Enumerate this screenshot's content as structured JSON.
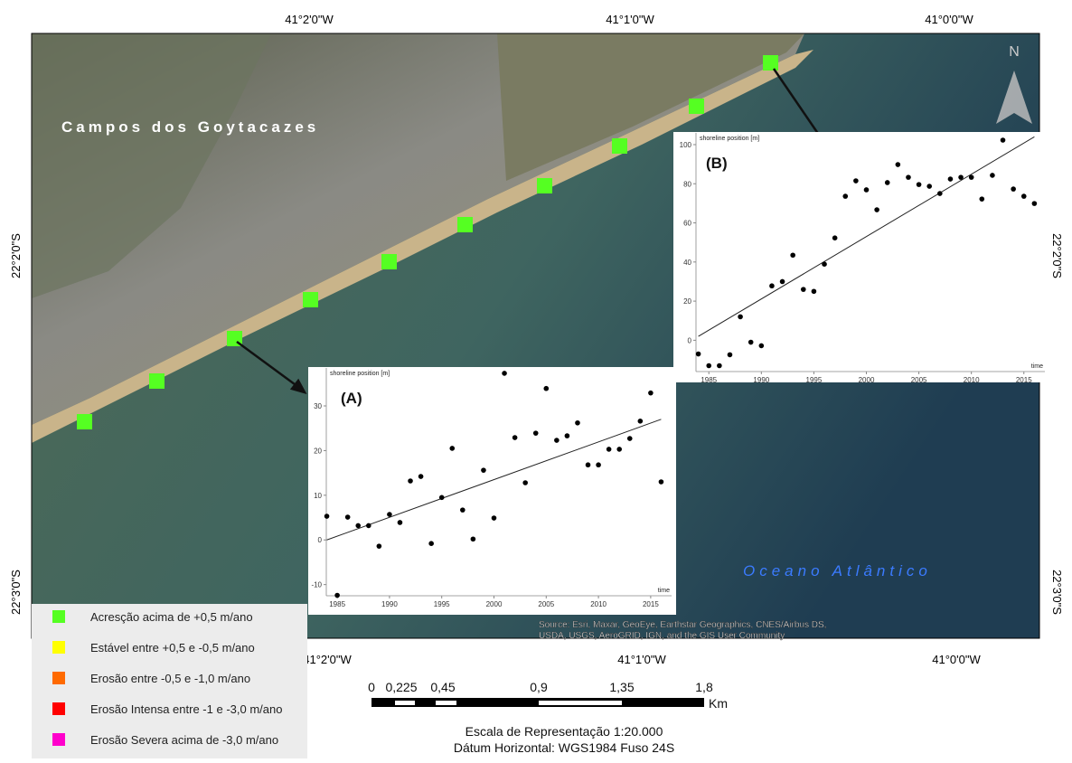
{
  "map": {
    "coords_top": [
      "41°2'0\"W",
      "41°1'0\"W",
      "41°0'0\"W"
    ],
    "coords_bottom": [
      "41°2'0\"W",
      "41°1'0\"W",
      "41°0'0\"W"
    ],
    "coords_left": [
      "22°2'0\"S",
      "22°3'0\"S"
    ],
    "coords_right": [
      "22°2'0\"S",
      "22°3'0\"S"
    ],
    "place_label": "Campos dos Goytacazes",
    "ocean_label": "Oceano Atlântico",
    "north": "N",
    "source": [
      "Source: Esri, Maxar, GeoEye, Earthstar Geographics, CNES/Airbus DS,",
      "USDA, USGS, AeroGRID, IGN, and the GIS User Community"
    ],
    "legend": [
      {
        "color": "#55ff22",
        "label": "Acresção  acima de +0,5 m/ano"
      },
      {
        "color": "#ffff00",
        "label": "Estável entre +0,5 e -0,5 m/ano"
      },
      {
        "color": "#ff6a00",
        "label": "Erosão entre -0,5 e -1,0 m/ano"
      },
      {
        "color": "#ff0000",
        "label": "Erosão Intensa entre -1 e  -3,0 m/ano"
      },
      {
        "color": "#ff00cc",
        "label": "Erosão Severa acima de -3,0 m/ano"
      }
    ],
    "scale": {
      "labels": [
        "0",
        "0,225",
        "0,45",
        "0,9",
        "1,35",
        "1,8"
      ],
      "unit": "Km"
    },
    "caption": [
      "Escala de Representação 1:20.000",
      "Dátum Horizontal: WGS1984 Fuso 24S"
    ]
  },
  "chart_data": [
    {
      "type": "scatter",
      "label": "(A)",
      "y_label": "shoreline position [m]",
      "x_label": "time",
      "x": [
        1984,
        1985,
        1986,
        1987,
        1988,
        1989,
        1990,
        1991,
        1992,
        1993,
        1994,
        1995,
        1996,
        1997,
        1998,
        1999,
        2000,
        2001,
        2002,
        2003,
        2004,
        2005,
        2006,
        2007,
        2008,
        2009,
        2010,
        2011,
        2012,
        2013,
        2014,
        2015,
        2016
      ],
      "y": [
        5.3,
        -12.4,
        5.1,
        3.2,
        3.2,
        -1.4,
        5.7,
        3.9,
        13.2,
        14.2,
        -0.8,
        9.5,
        20.5,
        6.7,
        0.2,
        15.6,
        4.9,
        37.3,
        22.9,
        12.8,
        23.9,
        33.9,
        22.3,
        23.3,
        26.2,
        16.8,
        16.8,
        20.3,
        20.3,
        22.7,
        26.6,
        32.9,
        13.0
      ],
      "trend": {
        "x": [
          1984,
          2016
        ],
        "y": [
          0,
          27
        ]
      },
      "xlim": [
        1983,
        2017
      ],
      "ylim": [
        -12.5,
        38.5
      ],
      "xticks": [
        1985,
        1990,
        1995,
        2000,
        2005,
        2010,
        2015
      ],
      "yticks": [
        -10,
        0,
        10,
        20,
        30
      ]
    },
    {
      "type": "scatter",
      "label": "(B)",
      "y_label": "shoreline position [m]",
      "x_label": "time",
      "x": [
        1984,
        1985,
        1986,
        1987,
        1988,
        1989,
        1990,
        1991,
        1992,
        1993,
        1994,
        1995,
        1996,
        1997,
        1998,
        1999,
        2000,
        2001,
        2002,
        2003,
        2004,
        2005,
        2006,
        2007,
        2008,
        2009,
        2010,
        2011,
        2012,
        2013,
        2014,
        2015,
        2016
      ],
      "y": [
        -7,
        -13,
        -13,
        -7.4,
        12,
        -1,
        -2.8,
        27.8,
        30,
        43.5,
        26,
        25,
        38.9,
        52.3,
        73.6,
        81.5,
        76.9,
        66.7,
        80.6,
        89.8,
        83.3,
        79.6,
        78.7,
        75,
        82.4,
        83.3,
        83.3,
        72.2,
        84.3,
        102.3,
        77.3,
        73.6,
        69.9
      ],
      "trend": {
        "x": [
          1984,
          2016
        ],
        "y": [
          2,
          104
        ]
      },
      "xlim": [
        1983,
        2017
      ],
      "ylim": [
        -16,
        106
      ],
      "xticks": [
        1985,
        1990,
        1995,
        2000,
        2005,
        2010,
        2015
      ],
      "yticks": [
        0,
        20,
        40,
        60,
        80,
        100
      ]
    }
  ]
}
